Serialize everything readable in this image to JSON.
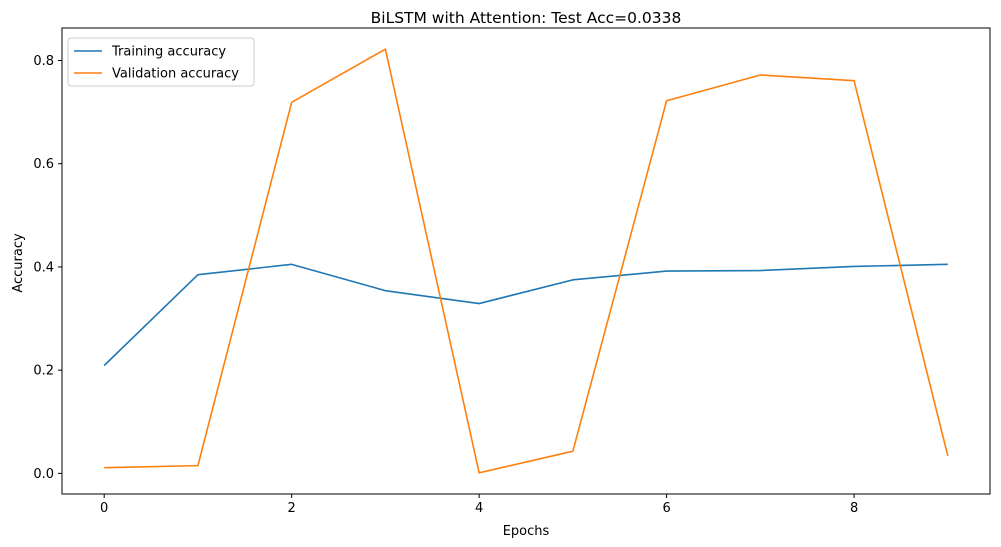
{
  "chart_data": {
    "type": "line",
    "title": "BiLSTM with Attention: Test Acc=0.0338",
    "xlabel": "Epochs",
    "ylabel": "Accuracy",
    "x": [
      0,
      1,
      2,
      3,
      4,
      5,
      6,
      7,
      8,
      9
    ],
    "xlim": [
      -0.45,
      9.45
    ],
    "ylim": [
      -0.04,
      0.863
    ],
    "xticks": [
      0,
      2,
      4,
      6,
      8
    ],
    "xtick_labels": [
      "0",
      "2",
      "4",
      "6",
      "8"
    ],
    "yticks": [
      0.0,
      0.2,
      0.4,
      0.6,
      0.8
    ],
    "ytick_labels": [
      "0.0",
      "0.2",
      "0.4",
      "0.6",
      "0.8"
    ],
    "grid": false,
    "legend_position": "upper-left",
    "series": [
      {
        "name": "Training accuracy",
        "color": "#1f77b4",
        "values": [
          0.209,
          0.385,
          0.405,
          0.354,
          0.329,
          0.375,
          0.392,
          0.393,
          0.401,
          0.405
        ]
      },
      {
        "name": "Validation accuracy",
        "color": "#ff7f0e",
        "values": [
          0.011,
          0.015,
          0.719,
          0.822,
          0.001,
          0.043,
          0.722,
          0.772,
          0.761,
          0.034
        ]
      }
    ]
  }
}
